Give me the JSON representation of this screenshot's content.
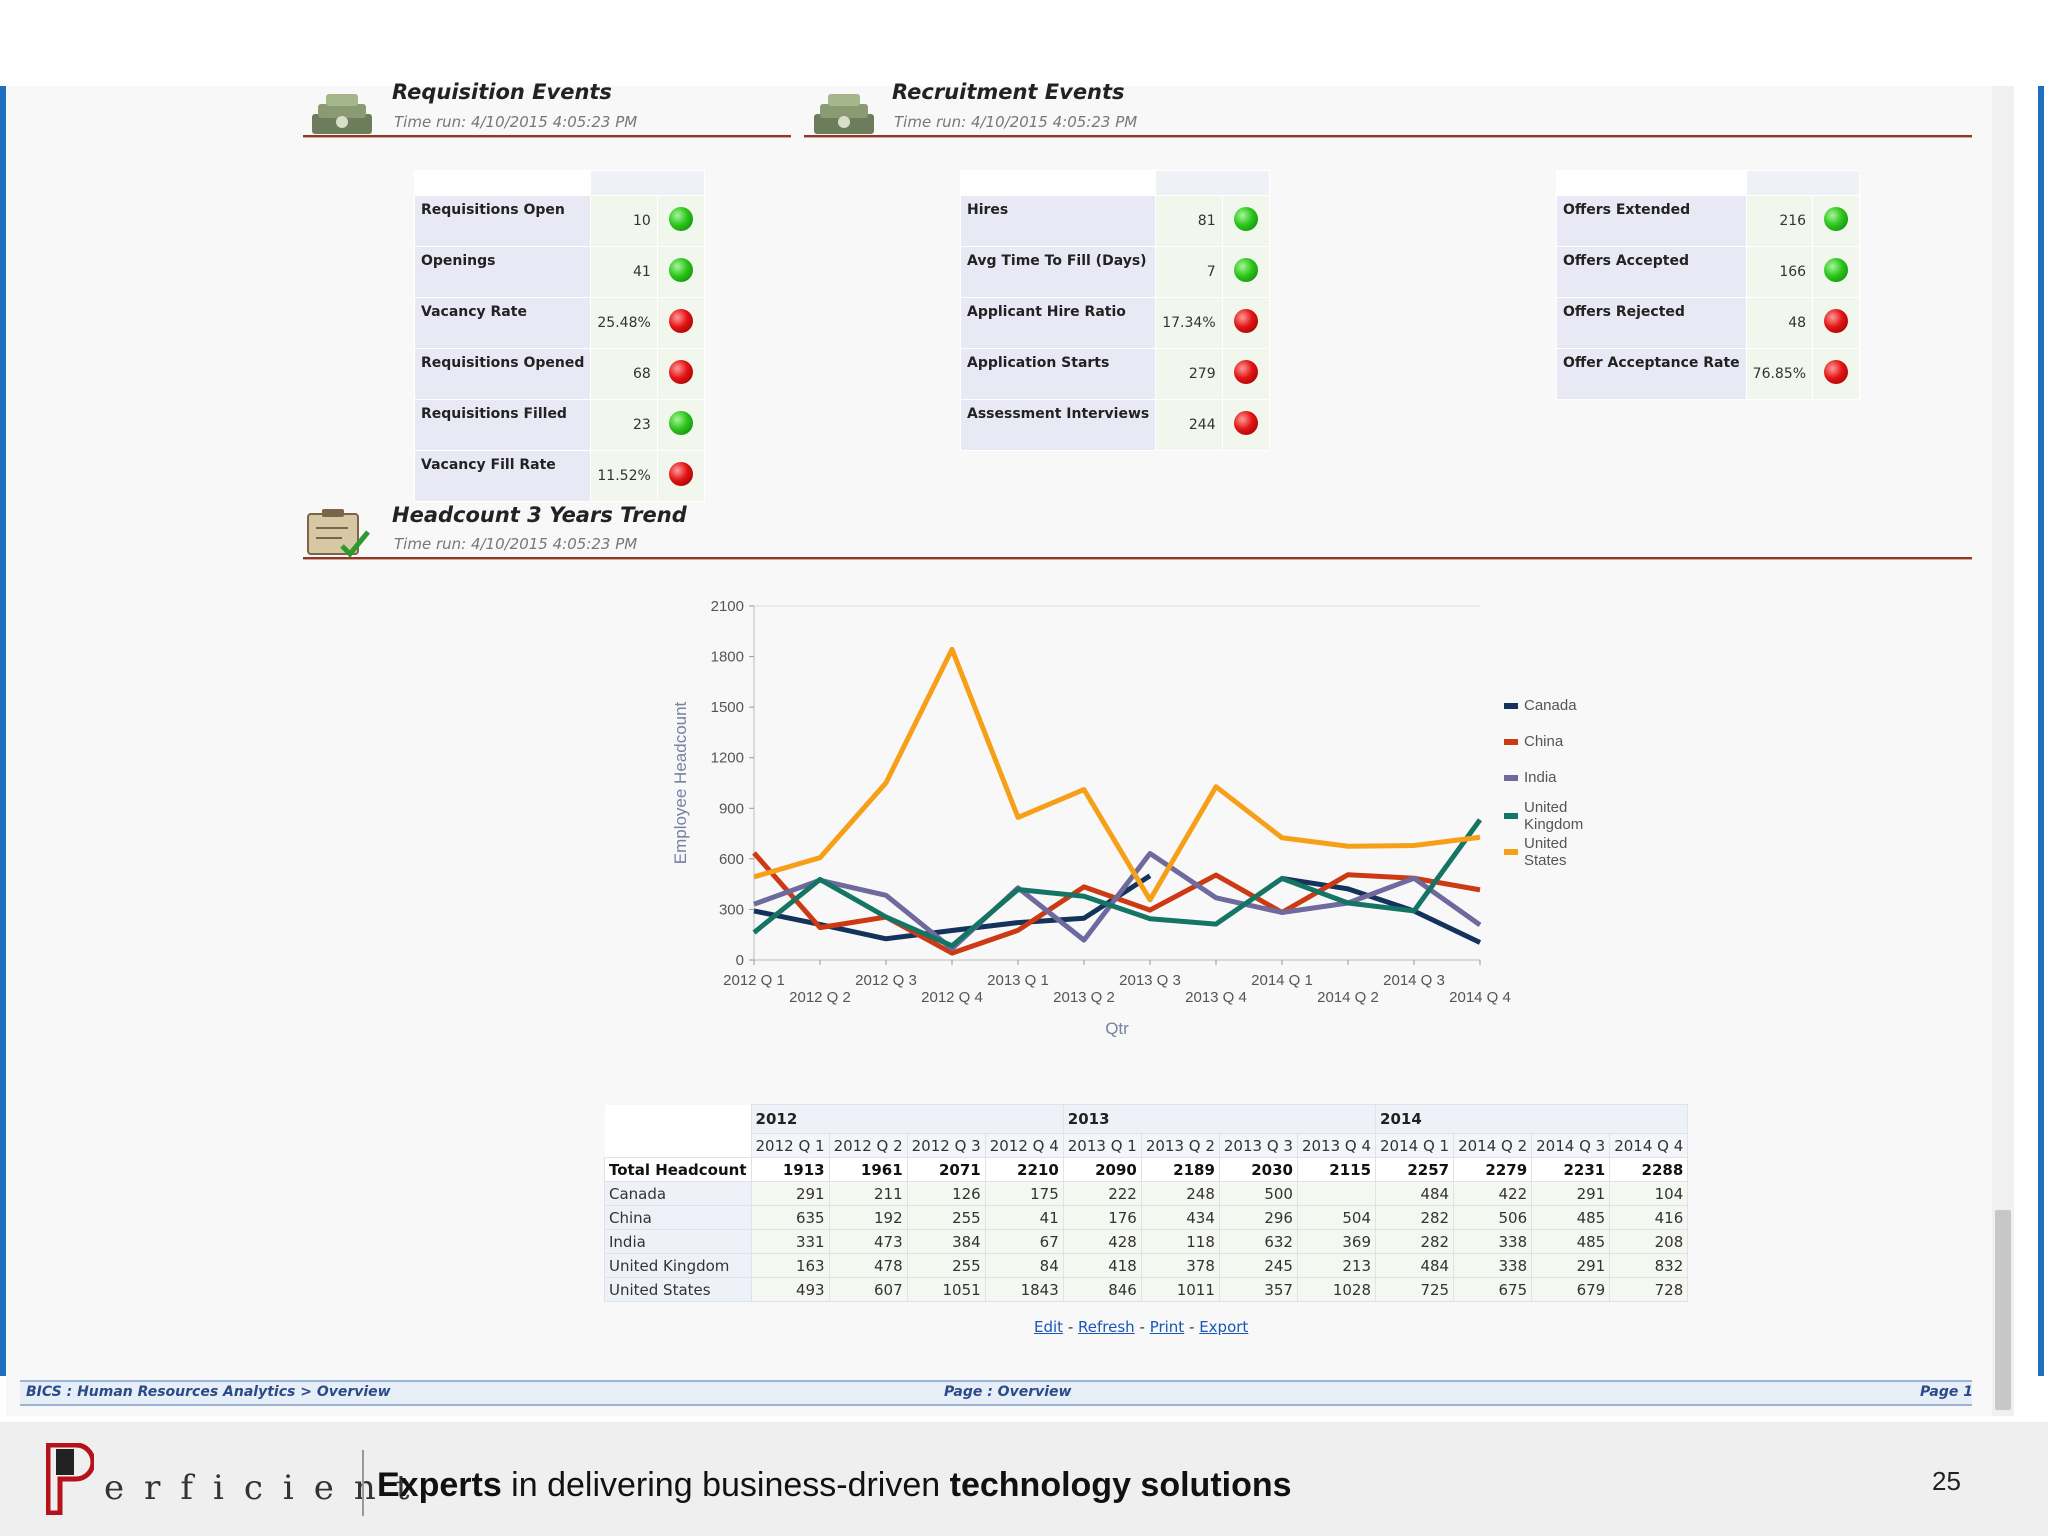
{
  "sections": {
    "requisition": {
      "title": "Requisition Events",
      "time_run": "Time run: 4/10/2015 4:05:23 PM"
    },
    "recruitment": {
      "title": "Recruitment Events",
      "time_run": "Time run: 4/10/2015 4:05:23 PM"
    },
    "headcount": {
      "title": "Headcount 3 Years Trend",
      "time_run": "Time run: 4/10/2015 4:05:23 PM"
    }
  },
  "kpi_requisition": [
    {
      "label": "Requisitions Open",
      "value": "10",
      "status": "green"
    },
    {
      "label": "Openings",
      "value": "41",
      "status": "green"
    },
    {
      "label": "Vacancy Rate",
      "value": "25.48%",
      "status": "red"
    },
    {
      "label": "Requisitions Opened",
      "value": "68",
      "status": "red"
    },
    {
      "label": "Requisitions Filled",
      "value": "23",
      "status": "green"
    },
    {
      "label": "Vacancy Fill Rate",
      "value": "11.52%",
      "status": "red"
    }
  ],
  "kpi_recruitment": [
    {
      "label": "Hires",
      "value": "81",
      "status": "green"
    },
    {
      "label": "Avg Time To Fill (Days)",
      "value": "7",
      "status": "green"
    },
    {
      "label": "Applicant Hire Ratio",
      "value": "17.34%",
      "status": "red"
    },
    {
      "label": "Application Starts",
      "value": "279",
      "status": "red"
    },
    {
      "label": "Assessment Interviews",
      "value": "244",
      "status": "red"
    }
  ],
  "kpi_offers": [
    {
      "label": "Offers Extended",
      "value": "216",
      "status": "green"
    },
    {
      "label": "Offers Accepted",
      "value": "166",
      "status": "green"
    },
    {
      "label": "Offers Rejected",
      "value": "48",
      "status": "red"
    },
    {
      "label": "Offer Acceptance Rate",
      "value": "76.85%",
      "status": "red"
    }
  ],
  "chart_data": {
    "type": "line",
    "title": "",
    "xlabel": "Qtr",
    "ylabel": "Employee Headcount",
    "ylim": [
      0,
      2100
    ],
    "yticks": [
      "0",
      "300",
      "600",
      "900",
      "1200",
      "1500",
      "1800",
      "2100"
    ],
    "categories": [
      "2012 Q 1",
      "2012 Q 2",
      "2012 Q 3",
      "2012 Q 4",
      "2013 Q 1",
      "2013 Q 2",
      "2013 Q 3",
      "2013 Q 4",
      "2014 Q 1",
      "2014 Q 2",
      "2014 Q 3",
      "2014 Q 4"
    ],
    "series": [
      {
        "name": "Canada",
        "color": "#14325c",
        "values": [
          291,
          211,
          126,
          175,
          222,
          248,
          500,
          null,
          484,
          422,
          291,
          104
        ]
      },
      {
        "name": "China",
        "color": "#cc3a14",
        "values": [
          635,
          192,
          255,
          41,
          176,
          434,
          296,
          504,
          282,
          506,
          485,
          416
        ]
      },
      {
        "name": "India",
        "color": "#6f6a9e",
        "values": [
          331,
          473,
          384,
          67,
          428,
          118,
          632,
          369,
          282,
          338,
          485,
          208
        ]
      },
      {
        "name": "United Kingdom",
        "color": "#157565",
        "values": [
          163,
          478,
          255,
          84,
          418,
          378,
          245,
          213,
          484,
          338,
          291,
          832
        ]
      },
      {
        "name": "United States",
        "color": "#f6a01a",
        "values": [
          493,
          607,
          1051,
          1843,
          846,
          1011,
          357,
          1028,
          725,
          675,
          679,
          728
        ]
      }
    ],
    "legend_position": "right"
  },
  "headcount_table": {
    "years": [
      {
        "label": "2012",
        "span": 4
      },
      {
        "label": "2013",
        "span": 4
      },
      {
        "label": "2014",
        "span": 4
      }
    ],
    "quarters": [
      "2012 Q 1",
      "2012 Q 2",
      "2012 Q 3",
      "2012 Q 4",
      "2013 Q 1",
      "2013 Q 2",
      "2013 Q 3",
      "2013 Q 4",
      "2014 Q 1",
      "2014 Q 2",
      "2014 Q 3",
      "2014 Q 4"
    ],
    "total": {
      "label": "Total Headcount",
      "values": [
        "1913",
        "1961",
        "2071",
        "2210",
        "2090",
        "2189",
        "2030",
        "2115",
        "2257",
        "2279",
        "2231",
        "2288"
      ]
    },
    "rows": [
      {
        "label": "Canada",
        "values": [
          "291",
          "211",
          "126",
          "175",
          "222",
          "248",
          "500",
          "",
          "484",
          "422",
          "291",
          "104"
        ]
      },
      {
        "label": "China",
        "values": [
          "635",
          "192",
          "255",
          "41",
          "176",
          "434",
          "296",
          "504",
          "282",
          "506",
          "485",
          "416"
        ]
      },
      {
        "label": "India",
        "values": [
          "331",
          "473",
          "384",
          "67",
          "428",
          "118",
          "632",
          "369",
          "282",
          "338",
          "485",
          "208"
        ]
      },
      {
        "label": "United Kingdom",
        "values": [
          "163",
          "478",
          "255",
          "84",
          "418",
          "378",
          "245",
          "213",
          "484",
          "338",
          "291",
          "832"
        ]
      },
      {
        "label": "United States",
        "values": [
          "493",
          "607",
          "1051",
          "1843",
          "846",
          "1011",
          "357",
          "1028",
          "725",
          "675",
          "679",
          "728"
        ]
      }
    ]
  },
  "links": {
    "edit": "Edit",
    "refresh": "Refresh",
    "print": "Print",
    "export": "Export",
    "sep": "-"
  },
  "footer": {
    "path": "BICS : Human Resources Analytics > Overview",
    "page_name": "Page : Overview",
    "page_num": "Page 1"
  },
  "brand": {
    "logo_letter": "P",
    "logo_rest": "erficient",
    "tagline_b1": "Experts",
    "tagline_mid": " in delivering business-driven ",
    "tagline_b2": "technology solutions",
    "slide_number": "25"
  }
}
